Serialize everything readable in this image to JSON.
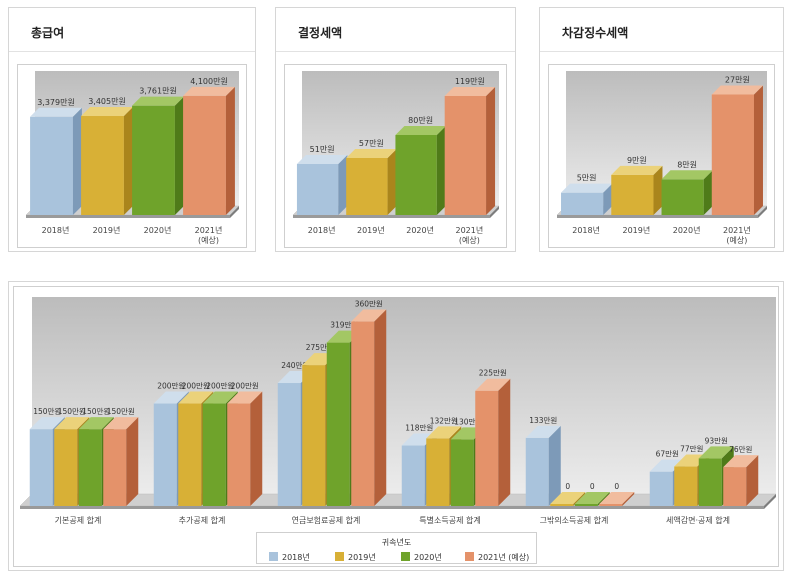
{
  "colors": {
    "s2018": {
      "front": "#a9c3dc",
      "side": "#7d9ab8",
      "top": "#cfdeec"
    },
    "s2019": {
      "front": "#d8b036",
      "side": "#aa851c",
      "top": "#ebd27a"
    },
    "s2020": {
      "front": "#6fa32b",
      "side": "#4f7b19",
      "top": "#a3c764"
    },
    "s2021": {
      "front": "#e4926a",
      "side": "#b4603a",
      "top": "#f1bc9e"
    }
  },
  "panels": [
    {
      "title": "총급여",
      "chart_data": {
        "type": "bar",
        "categories": [
          "2018년",
          "2019년",
          "2020년",
          "2021년\n(예상)"
        ],
        "values": [
          3379,
          3405,
          3761,
          4100
        ],
        "labels": [
          "3,379만원",
          "3,405만원",
          "3,761만원",
          "4,100만원"
        ],
        "ylim": [
          0,
          4300
        ]
      }
    },
    {
      "title": "결정세액",
      "chart_data": {
        "type": "bar",
        "categories": [
          "2018년",
          "2019년",
          "2020년",
          "2021년\n(예상)"
        ],
        "values": [
          51,
          57,
          80,
          119
        ],
        "labels": [
          "51만원",
          "57만원",
          "80만원",
          "119만원"
        ],
        "ylim": [
          0,
          125
        ]
      }
    },
    {
      "title": "차감징수세액",
      "chart_data": {
        "type": "bar",
        "categories": [
          "2018년",
          "2019년",
          "2020년",
          "2021년\n(예상)"
        ],
        "values": [
          5,
          9,
          8,
          27
        ],
        "labels": [
          "5만원",
          "9만원",
          "8만원",
          "27만원"
        ],
        "ylim": [
          0,
          28
        ]
      }
    }
  ],
  "bottom": {
    "chart_data": {
      "type": "bar",
      "categories": [
        "기본공제 합계",
        "추가공제 합계",
        "연금보험료공제 합계",
        "특별소득공제 합계",
        "그밖의소득공제 합계",
        "세액감면·공제 합계"
      ],
      "series": [
        {
          "name": "2018년",
          "values": [
            150,
            200,
            240,
            118,
            133,
            67
          ],
          "labels": [
            "150만원",
            "200만원",
            "240만원",
            "118만원",
            "133만원",
            "67만원"
          ]
        },
        {
          "name": "2019년",
          "values": [
            150,
            200,
            275,
            132,
            0,
            77
          ],
          "labels": [
            "150만원",
            "200만원",
            "275만원",
            "132만원",
            "0",
            "77만원"
          ]
        },
        {
          "name": "2020년",
          "values": [
            150,
            200,
            319,
            130,
            0,
            93
          ],
          "labels": [
            "150만원",
            "200만원",
            "319만원",
            "130만원",
            "0",
            "93만원"
          ]
        },
        {
          "name": "2021년 (예상)",
          "values": [
            150,
            200,
            360,
            225,
            0,
            76
          ],
          "labels": [
            "150만원",
            "200만원",
            "360만원",
            "225만원",
            "0",
            "76만원"
          ]
        }
      ],
      "ylim": [
        0,
        365
      ],
      "legend_title": "귀속년도",
      "legend_position": "bottom-center"
    }
  }
}
